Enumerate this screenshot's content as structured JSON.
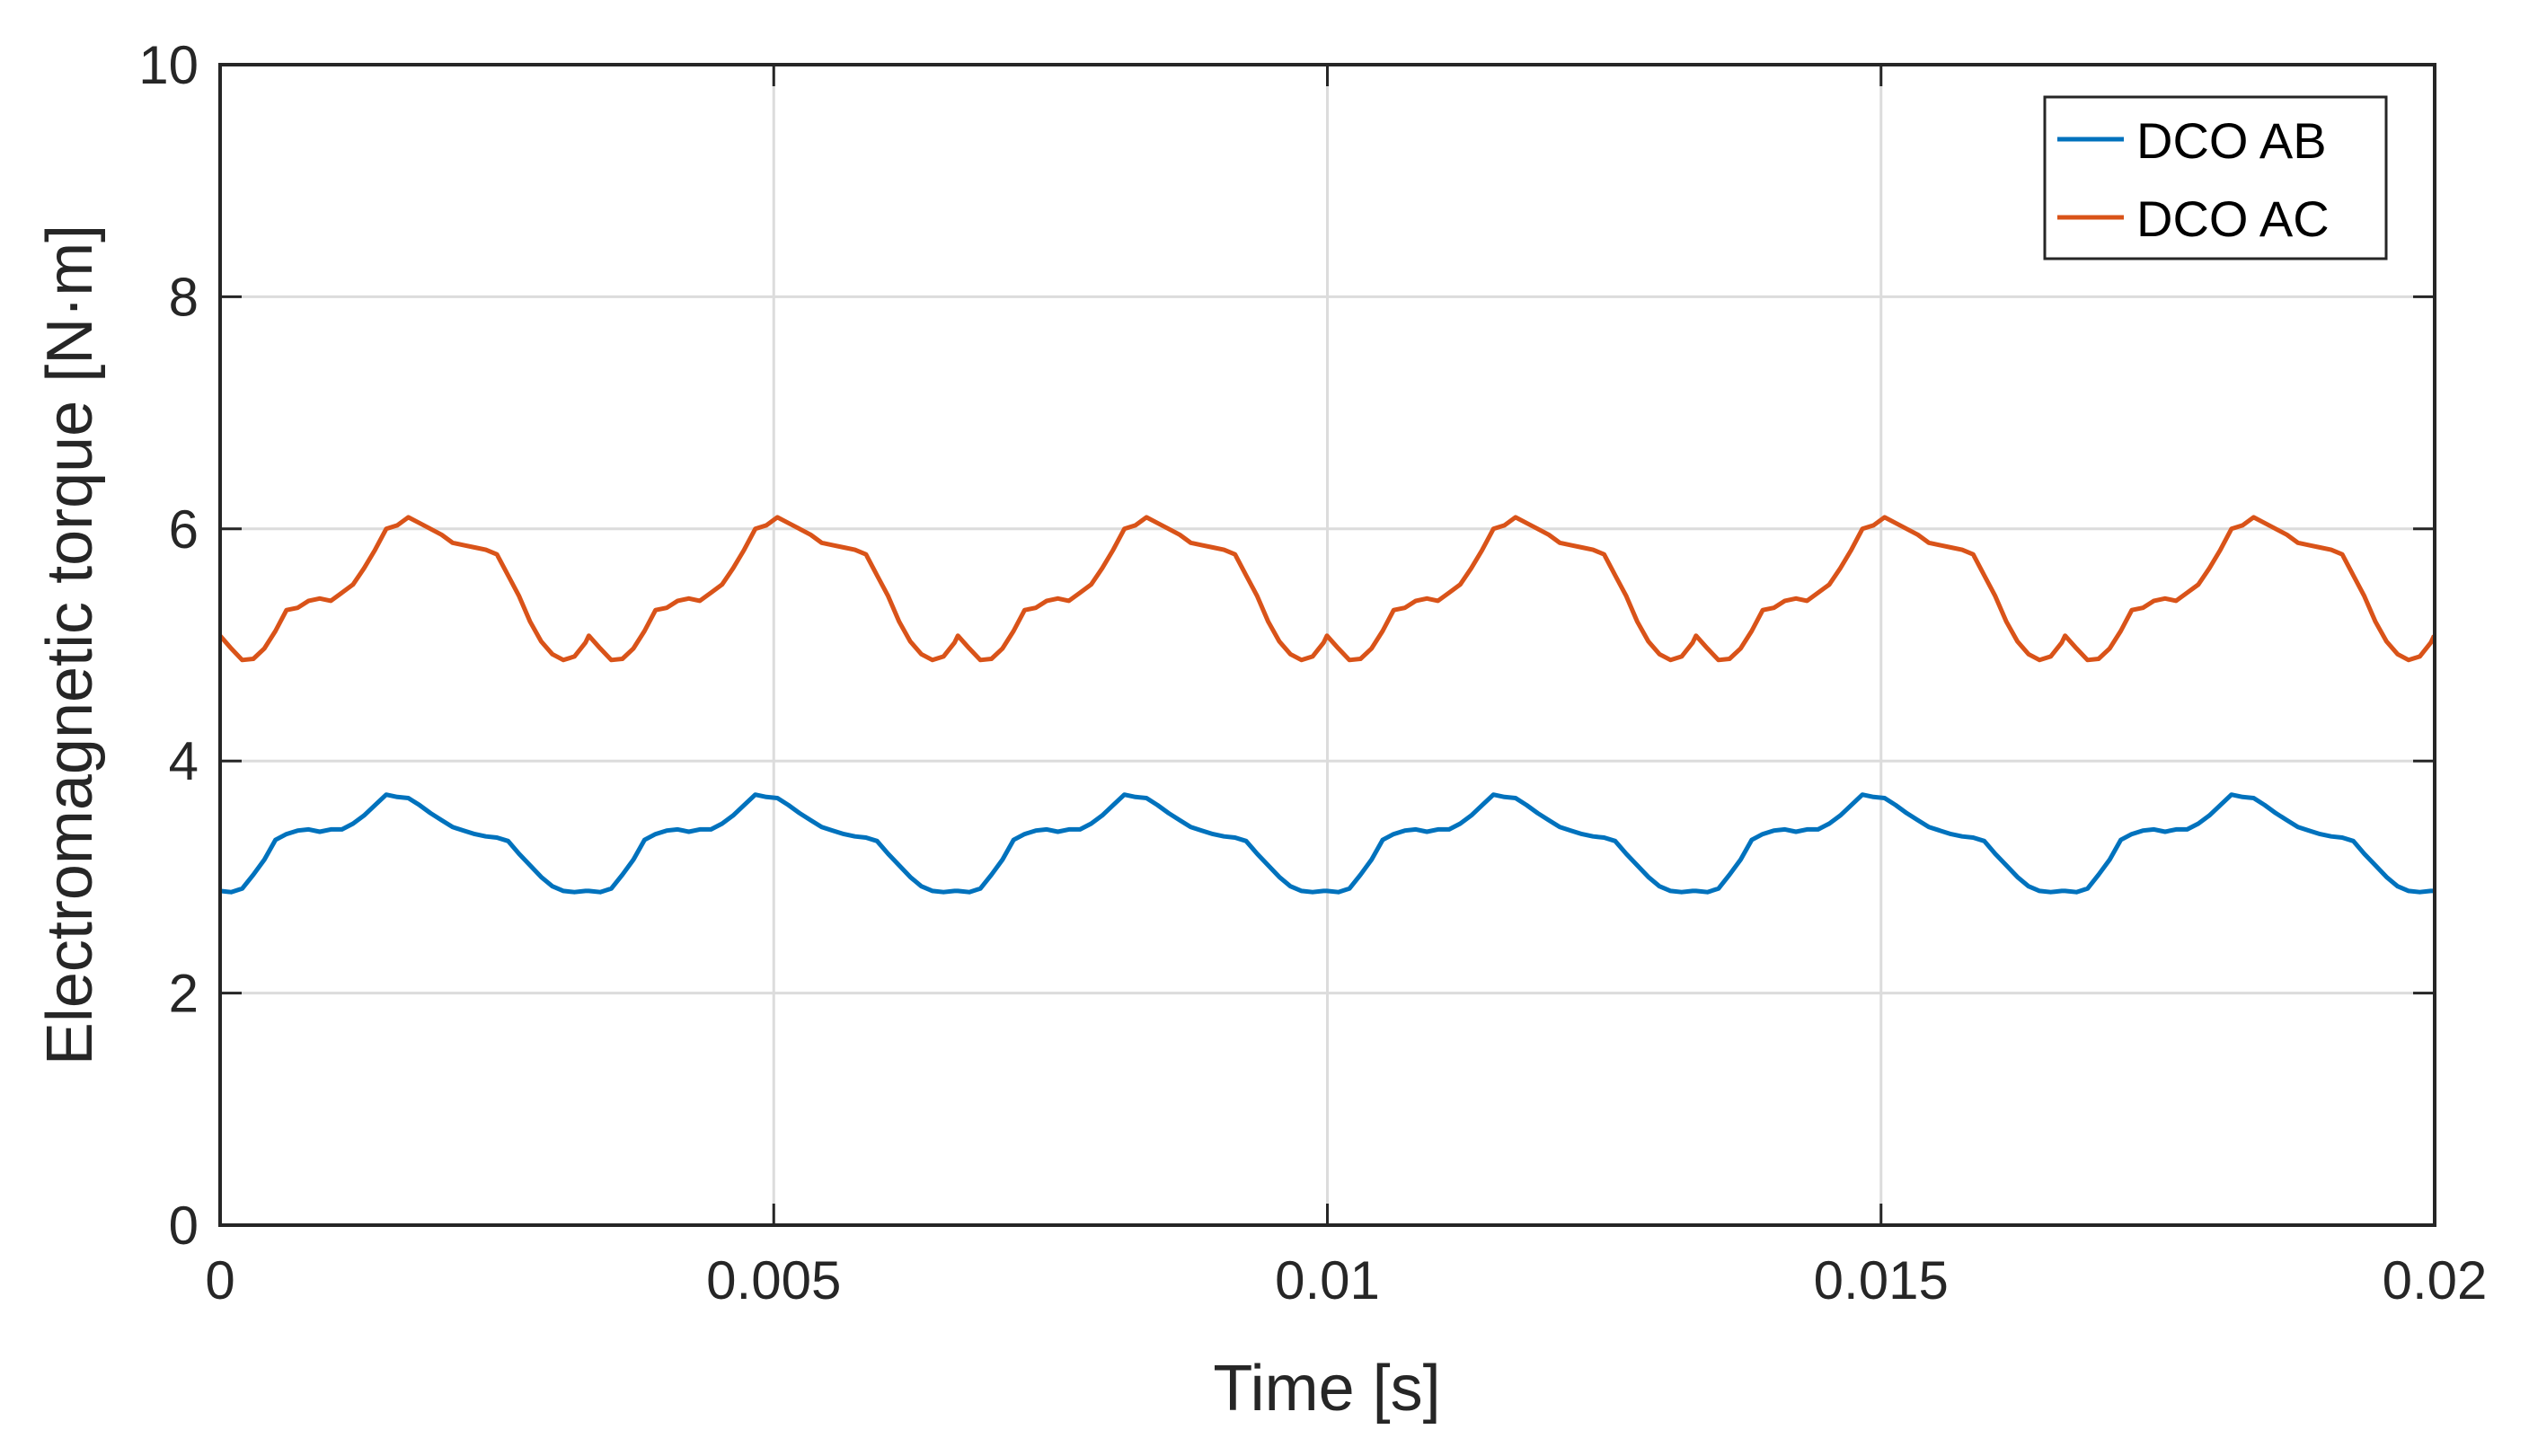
{
  "chart_data": {
    "type": "line",
    "title": "",
    "xlabel": "Time  [s]",
    "ylabel": "Electromagnetic torque [N·m]",
    "xlim": [
      0,
      0.02
    ],
    "ylim": [
      0,
      10
    ],
    "xticks": [
      0,
      0.005,
      0.01,
      0.015,
      0.02
    ],
    "xtick_labels": [
      "0",
      "0.005",
      "0.01",
      "0.015",
      "0.02"
    ],
    "yticks": [
      0,
      2,
      4,
      6,
      8,
      10
    ],
    "ytick_labels": [
      "0",
      "2",
      "4",
      "6",
      "8",
      "10"
    ],
    "grid": true,
    "legend_position": "top-right",
    "series": [
      {
        "name": "DCO AB",
        "color": "#0072BD",
        "x": [
          0,
          0.0001,
          0.0002,
          0.0003,
          0.0004,
          0.0005,
          0.0006,
          0.0007,
          0.0008,
          0.0009,
          0.001,
          0.0011,
          0.0012,
          0.0013,
          0.0014,
          0.0015,
          0.0016,
          0.0017,
          0.0018,
          0.0019,
          0.002,
          0.0021,
          0.0022,
          0.0023,
          0.0024,
          0.0025,
          0.0026,
          0.0027,
          0.0028,
          0.0029,
          0.003,
          0.0031,
          0.0032,
          0.0033,
          0.00333
        ],
        "y": [
          2.88,
          2.87,
          2.9,
          3.02,
          3.15,
          3.32,
          3.37,
          3.4,
          3.41,
          3.39,
          3.41,
          3.41,
          3.46,
          3.53,
          3.62,
          3.71,
          3.69,
          3.68,
          3.62,
          3.55,
          3.49,
          3.43,
          3.4,
          3.37,
          3.35,
          3.34,
          3.31,
          3.2,
          3.1,
          3.0,
          2.92,
          2.88,
          2.87,
          2.88,
          2.88
        ],
        "period": 0.003333
      },
      {
        "name": "DCO AC",
        "color": "#D95319",
        "x": [
          0,
          0.0001,
          0.0002,
          0.0003,
          0.0004,
          0.0005,
          0.0006,
          0.0007,
          0.0008,
          0.0009,
          0.001,
          0.0011,
          0.0012,
          0.0013,
          0.0014,
          0.0015,
          0.0016,
          0.0017,
          0.0018,
          0.0019,
          0.002,
          0.0021,
          0.0022,
          0.0023,
          0.0024,
          0.0025,
          0.0026,
          0.0027,
          0.0028,
          0.0029,
          0.003,
          0.0031,
          0.0032,
          0.0033,
          0.00333
        ],
        "y": [
          5.08,
          4.97,
          4.87,
          4.88,
          4.97,
          5.12,
          5.3,
          5.32,
          5.38,
          5.4,
          5.38,
          5.45,
          5.52,
          5.66,
          5.82,
          6.0,
          6.03,
          6.1,
          6.05,
          6.0,
          5.95,
          5.88,
          5.86,
          5.84,
          5.82,
          5.78,
          5.6,
          5.42,
          5.2,
          5.03,
          4.92,
          4.87,
          4.9,
          5.02,
          5.08
        ],
        "period": 0.003333
      }
    ]
  }
}
